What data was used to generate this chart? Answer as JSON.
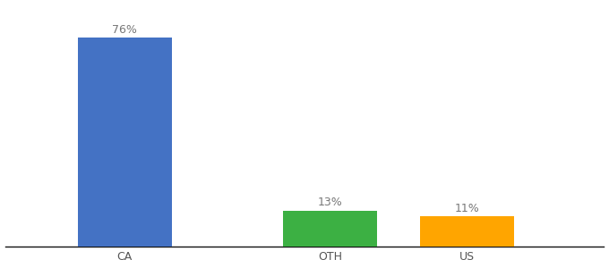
{
  "categories": [
    "CA",
    "OTH",
    "US"
  ],
  "values": [
    76,
    13,
    11
  ],
  "bar_colors": [
    "#4472C4",
    "#3CB043",
    "#FFA500"
  ],
  "labels": [
    "76%",
    "13%",
    "11%"
  ],
  "ylim": [
    0,
    88
  ],
  "background_color": "#ffffff",
  "label_fontsize": 9,
  "tick_fontsize": 9,
  "bar_width": 0.55,
  "x_positions": [
    1.0,
    2.2,
    3.0
  ],
  "xlim": [
    0.3,
    3.8
  ]
}
